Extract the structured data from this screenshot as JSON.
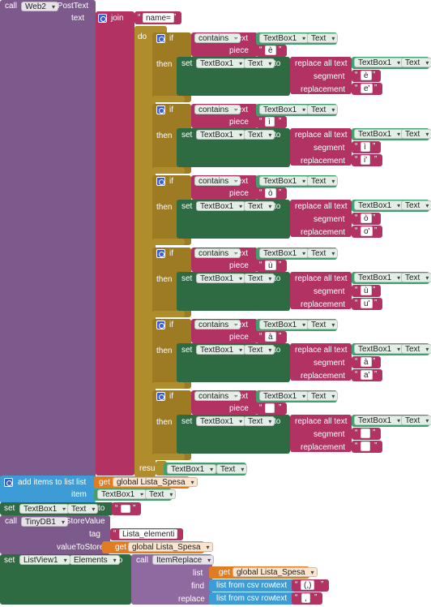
{
  "call_post": {
    "call": "call",
    "component": "Web2",
    "method": ".PostText",
    "text_label": "text"
  },
  "join": {
    "label": "join",
    "first": "name="
  },
  "do_label": "do",
  "result_label": "result",
  "result_component": "TextBox1",
  "result_prop": "Text",
  "ifs": [
    {
      "piece": "è",
      "segment": "è",
      "replacement": "e'"
    },
    {
      "piece": "ì",
      "segment": "ì",
      "replacement": "i'"
    },
    {
      "piece": "ò",
      "segment": "ò",
      "replacement": "o'"
    },
    {
      "piece": "ù",
      "segment": "ù",
      "replacement": "u'"
    },
    {
      "piece": "à",
      "segment": "à",
      "replacement": "a'"
    },
    {
      "piece": "",
      "segment": "",
      "replacement": ""
    }
  ],
  "if_words": {
    "if": "if",
    "contains": "contains",
    "text": "text",
    "piece": "piece",
    "then": "then",
    "set": "set",
    "to": "to",
    "replace_all": "replace all text",
    "segment": "segment",
    "replacement": "replacement",
    "component": "TextBox1",
    "prop": "Text",
    "dot": "."
  },
  "add_items": {
    "label": "add items to list",
    "list_label": "list",
    "get": "get",
    "variable": "global Lista_Spesa",
    "item_label": "item",
    "component": "TextBox1",
    "prop": "Text"
  },
  "set_textbox": {
    "set": "set",
    "component": "TextBox1",
    "prop": "Text",
    "to": "to",
    "value": ""
  },
  "store_value": {
    "call": "call",
    "component": "TinyDB1",
    "method": ".StoreValue",
    "tag_label": "tag",
    "tag": "Lista_elementi",
    "value_label": "valueToStore",
    "get": "get",
    "variable": "global Lista_Spesa"
  },
  "set_listview": {
    "set": "set",
    "component": "ListView1",
    "prop": "Elements",
    "to": "to",
    "call": "call",
    "method": "ItemReplace",
    "list_label": "list",
    "get": "get",
    "variable": "global Lista_Spesa",
    "find_label": "find",
    "csv": "list from csv row",
    "text_label": "text",
    "find_value": "(,)",
    "replace_label": "replace",
    "replace_value": ","
  },
  "colors": {
    "procedure": "#7d5a8c",
    "text": "#b23263",
    "control": "#b08d2c",
    "setter": "#2e6b42",
    "component": "#41a06e",
    "list": "#3d9bd6",
    "variable": "#e07c22"
  }
}
